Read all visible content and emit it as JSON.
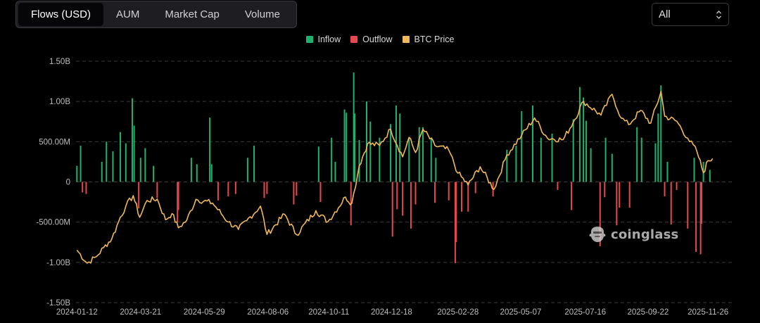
{
  "tabs": [
    {
      "label": "Flows (USD)",
      "active": true
    },
    {
      "label": "AUM",
      "active": false
    },
    {
      "label": "Market Cap",
      "active": false
    },
    {
      "label": "Volume",
      "active": false
    }
  ],
  "range_select": {
    "value": "All"
  },
  "watermark": "coinglass",
  "colors": {
    "inflow": "#20b26c",
    "outflow": "#e5484d",
    "btc_price": "#f0b95a",
    "grid": "#3a3a3a"
  },
  "chart_data": {
    "type": "bar",
    "title": "",
    "legend": {
      "placement": "top-center",
      "entries": [
        {
          "name": "Inflow",
          "color": "#20b26c"
        },
        {
          "name": "Outflow",
          "color": "#e5484d"
        },
        {
          "name": "BTC Price",
          "color": "#f0b95a"
        }
      ]
    },
    "grid": {
      "horizontal": true,
      "style": "dashed",
      "vertical": false
    },
    "y_axis": {
      "label": "",
      "range": [
        -1.5,
        1.5
      ],
      "unit": "B USD",
      "ticks": [
        1.5,
        1.0,
        0.5,
        0,
        -0.5,
        -1.0,
        -1.5
      ],
      "tick_labels": [
        "1.50B",
        "1.00B",
        "500.00M",
        "0",
        "-500.00M",
        "-1.00B",
        "-1.50B"
      ]
    },
    "x_axis": {
      "label": "",
      "range": [
        "2024-01-11",
        "2025-12-02"
      ],
      "tick_labels": [
        "2024-01-12",
        "2024-03-21",
        "2024-05-29",
        "2024-08-06",
        "2024-10-11",
        "2024-12-18",
        "2025-02-28",
        "2025-05-07",
        "2025-07-16",
        "2025-09-22",
        "2025-11-26"
      ]
    },
    "series": [
      {
        "name": "Inflow",
        "type": "bar",
        "unit": "B USD",
        "points": [
          [
            "2024-01-12",
            0.2
          ],
          [
            "2024-01-16",
            0.45
          ],
          [
            "2024-02-08",
            0.25
          ],
          [
            "2024-02-13",
            0.5
          ],
          [
            "2024-02-20",
            0.38
          ],
          [
            "2024-02-28",
            0.62
          ],
          [
            "2024-03-05",
            0.48
          ],
          [
            "2024-03-12",
            1.04
          ],
          [
            "2024-03-14",
            0.7
          ],
          [
            "2024-03-21",
            0.3
          ],
          [
            "2024-03-26",
            0.42
          ],
          [
            "2024-04-04",
            0.2
          ],
          [
            "2024-05-15",
            0.3
          ],
          [
            "2024-05-21",
            0.22
          ],
          [
            "2024-06-04",
            0.8
          ],
          [
            "2024-06-06",
            0.22
          ],
          [
            "2024-07-15",
            0.3
          ],
          [
            "2024-07-22",
            0.45
          ],
          [
            "2024-09-30",
            0.44
          ],
          [
            "2024-10-14",
            0.55
          ],
          [
            "2024-10-18",
            0.25
          ],
          [
            "2024-10-28",
            0.9
          ],
          [
            "2024-10-30",
            0.86
          ],
          [
            "2024-11-07",
            1.36
          ],
          [
            "2024-11-08",
            0.85
          ],
          [
            "2024-11-13",
            0.52
          ],
          [
            "2024-11-21",
            1.0
          ],
          [
            "2024-11-25",
            0.75
          ],
          [
            "2024-12-05",
            0.55
          ],
          [
            "2024-12-17",
            0.72
          ],
          [
            "2024-12-23",
            0.95
          ],
          [
            "2024-12-27",
            0.85
          ],
          [
            "2025-01-06",
            0.55
          ],
          [
            "2025-01-17",
            0.68
          ],
          [
            "2025-01-21",
            0.68
          ],
          [
            "2025-01-30",
            0.55
          ],
          [
            "2025-02-04",
            0.3
          ],
          [
            "2025-04-22",
            0.4
          ],
          [
            "2025-05-02",
            0.45
          ],
          [
            "2025-05-08",
            0.88
          ],
          [
            "2025-05-20",
            0.95
          ],
          [
            "2025-05-29",
            0.55
          ],
          [
            "2025-06-10",
            0.6
          ],
          [
            "2025-07-03",
            0.78
          ],
          [
            "2025-07-10",
            1.18
          ],
          [
            "2025-07-14",
            1.05
          ],
          [
            "2025-07-17",
            0.76
          ],
          [
            "2025-07-22",
            0.42
          ],
          [
            "2025-08-07",
            0.55
          ],
          [
            "2025-08-14",
            0.35
          ],
          [
            "2025-09-10",
            0.68
          ],
          [
            "2025-09-15",
            0.55
          ],
          [
            "2025-09-30",
            0.48
          ],
          [
            "2025-10-03",
            0.85
          ],
          [
            "2025-10-06",
            1.2
          ],
          [
            "2025-10-13",
            0.25
          ],
          [
            "2025-11-11",
            0.3
          ],
          [
            "2025-11-21",
            0.25
          ],
          [
            "2025-11-28",
            0.15
          ]
        ]
      },
      {
        "name": "Outflow",
        "type": "bar",
        "unit": "B USD",
        "points": [
          [
            "2024-01-18",
            -0.13
          ],
          [
            "2024-01-22",
            -0.15
          ],
          [
            "2024-03-19",
            -0.33
          ],
          [
            "2024-04-08",
            -0.2
          ],
          [
            "2024-04-30",
            -0.5
          ],
          [
            "2024-05-01",
            -0.35
          ],
          [
            "2024-06-13",
            -0.23
          ],
          [
            "2024-06-24",
            -0.18
          ],
          [
            "2024-07-02",
            -0.15
          ],
          [
            "2024-08-02",
            -0.2
          ],
          [
            "2024-08-05",
            -0.15
          ],
          [
            "2024-09-03",
            -0.28
          ],
          [
            "2024-09-06",
            -0.17
          ],
          [
            "2024-10-02",
            -0.25
          ],
          [
            "2024-11-04",
            -0.54
          ],
          [
            "2024-12-19",
            -0.68
          ],
          [
            "2024-12-24",
            -0.34
          ],
          [
            "2024-12-30",
            -0.42
          ],
          [
            "2025-01-08",
            -0.58
          ],
          [
            "2025-01-13",
            -0.28
          ],
          [
            "2025-02-03",
            -0.26
          ],
          [
            "2025-02-18",
            -0.23
          ],
          [
            "2025-02-25",
            -1.01
          ],
          [
            "2025-02-26",
            -0.75
          ],
          [
            "2025-03-04",
            -0.37
          ],
          [
            "2025-03-11",
            -0.37
          ],
          [
            "2025-03-19",
            -0.14
          ],
          [
            "2025-04-07",
            -0.18
          ],
          [
            "2025-06-16",
            -0.1
          ],
          [
            "2025-07-01",
            -0.35
          ],
          [
            "2025-08-01",
            -0.8
          ],
          [
            "2025-08-06",
            -0.19
          ],
          [
            "2025-08-19",
            -0.54
          ],
          [
            "2025-08-22",
            -0.32
          ],
          [
            "2025-09-02",
            -0.32
          ],
          [
            "2025-10-10",
            -0.18
          ],
          [
            "2025-10-17",
            -0.53
          ],
          [
            "2025-10-23",
            -0.1
          ],
          [
            "2025-11-04",
            -0.58
          ],
          [
            "2025-11-13",
            -0.87
          ],
          [
            "2025-11-18",
            -0.9
          ],
          [
            "2025-11-19",
            -0.52
          ]
        ]
      },
      {
        "name": "BTC Price",
        "type": "line",
        "unit": "USD",
        "points": [
          [
            "2024-01-12",
            46300
          ],
          [
            "2024-01-23",
            39800
          ],
          [
            "2024-02-02",
            43000
          ],
          [
            "2024-02-10",
            47500
          ],
          [
            "2024-02-19",
            52000
          ],
          [
            "2024-02-28",
            62500
          ],
          [
            "2024-03-05",
            68000
          ],
          [
            "2024-03-13",
            73200
          ],
          [
            "2024-03-20",
            62500
          ],
          [
            "2024-03-28",
            70800
          ],
          [
            "2024-04-08",
            71500
          ],
          [
            "2024-04-17",
            61300
          ],
          [
            "2024-04-24",
            64300
          ],
          [
            "2024-05-01",
            57300
          ],
          [
            "2024-05-10",
            61000
          ],
          [
            "2024-05-20",
            71400
          ],
          [
            "2024-06-07",
            69500
          ],
          [
            "2024-06-24",
            60200
          ],
          [
            "2024-07-05",
            56500
          ],
          [
            "2024-07-14",
            60800
          ],
          [
            "2024-07-29",
            68000
          ],
          [
            "2024-08-05",
            54000
          ],
          [
            "2024-08-24",
            64000
          ],
          [
            "2024-09-06",
            53900
          ],
          [
            "2024-09-27",
            65800
          ],
          [
            "2024-10-10",
            60300
          ],
          [
            "2024-10-29",
            72500
          ],
          [
            "2024-11-05",
            69400
          ],
          [
            "2024-11-13",
            88000
          ],
          [
            "2024-11-22",
            98900
          ],
          [
            "2024-12-05",
            98000
          ],
          [
            "2024-12-17",
            106100
          ],
          [
            "2024-12-30",
            92400
          ],
          [
            "2025-01-06",
            102000
          ],
          [
            "2025-01-13",
            94500
          ],
          [
            "2025-01-21",
            106000
          ],
          [
            "2025-02-03",
            98000
          ],
          [
            "2025-02-18",
            95700
          ],
          [
            "2025-02-28",
            84300
          ],
          [
            "2025-03-11",
            78500
          ],
          [
            "2025-03-24",
            87500
          ],
          [
            "2025-04-08",
            76300
          ],
          [
            "2025-04-22",
            93400
          ],
          [
            "2025-05-08",
            103000
          ],
          [
            "2025-05-22",
            111600
          ],
          [
            "2025-06-05",
            101600
          ],
          [
            "2025-06-22",
            100900
          ],
          [
            "2025-07-03",
            109600
          ],
          [
            "2025-07-14",
            119800
          ],
          [
            "2025-08-02",
            113000
          ],
          [
            "2025-08-14",
            123300
          ],
          [
            "2025-08-24",
            111500
          ],
          [
            "2025-09-01",
            108300
          ],
          [
            "2025-09-14",
            115300
          ],
          [
            "2025-09-25",
            109000
          ],
          [
            "2025-10-06",
            124700
          ],
          [
            "2025-10-10",
            112500
          ],
          [
            "2025-10-23",
            110000
          ],
          [
            "2025-11-04",
            101600
          ],
          [
            "2025-11-14",
            95000
          ],
          [
            "2025-11-21",
            84500
          ],
          [
            "2025-11-26",
            90500
          ],
          [
            "2025-12-01",
            91500
          ]
        ]
      }
    ]
  }
}
